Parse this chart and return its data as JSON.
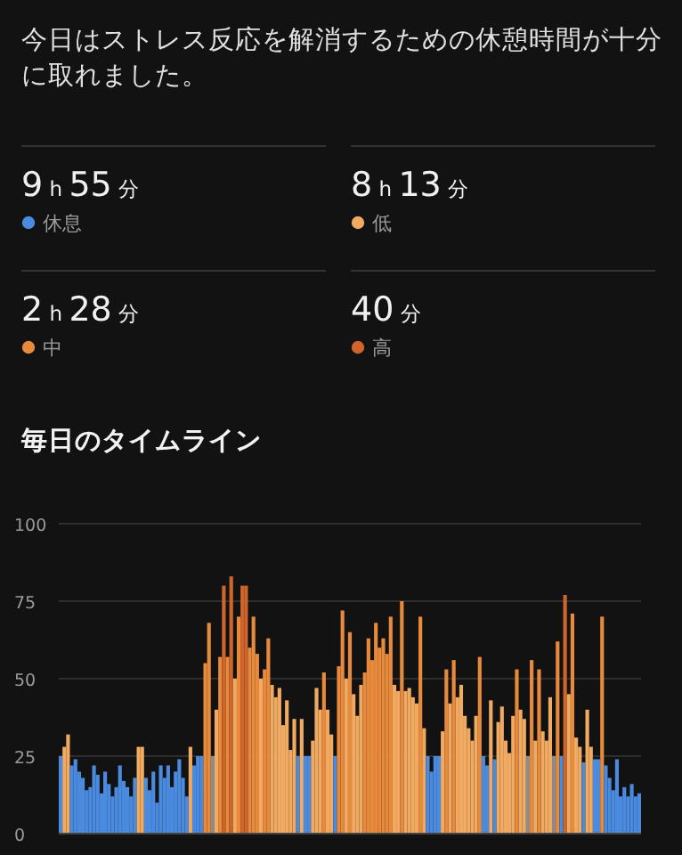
{
  "chart_data": [
    {
      "type": "other",
      "title": "今日はストレス反応を解消するための休憩時間が十分に取れました。",
      "categories": [
        "休息",
        "低",
        "中",
        "高"
      ],
      "colors": [
        "#4a8be0",
        "#f0aa62",
        "#e88a3c",
        "#d0652b"
      ],
      "value_labels": [
        "9 h 55 分",
        "8 h 13 分",
        "2 h 28 分",
        "40 分"
      ]
    },
    {
      "type": "bar",
      "title": "毎日のタイムライン",
      "ylim": [
        0,
        100
      ],
      "yticks": [
        0,
        25,
        50,
        75,
        100
      ],
      "grid": "y",
      "categories": [
        null,
        null,
        null,
        null,
        null,
        null,
        null,
        null,
        null,
        null,
        null,
        null,
        null,
        null,
        null,
        null,
        null,
        null,
        null,
        null,
        null,
        null,
        null,
        null,
        null,
        null,
        null,
        null,
        null,
        null,
        null,
        null,
        null,
        null,
        null,
        null,
        null,
        null,
        null,
        null,
        null,
        null,
        null,
        null,
        null,
        null,
        null,
        null,
        null,
        null,
        null,
        null,
        null,
        null,
        null,
        null,
        null,
        null,
        null,
        null,
        null,
        null,
        null,
        null,
        null,
        null,
        null,
        null,
        null,
        null,
        null,
        null,
        null,
        null,
        null,
        null,
        null,
        null,
        null,
        null,
        null,
        null,
        null,
        null,
        null,
        null,
        null,
        null,
        null,
        null,
        null,
        null,
        null,
        null,
        null,
        null,
        null,
        null,
        null,
        null,
        null,
        null,
        null,
        null,
        null,
        null,
        null,
        null,
        null,
        null,
        null,
        null,
        null,
        null,
        null,
        null,
        null,
        null,
        null,
        null,
        null,
        null,
        null,
        null,
        null,
        null,
        null,
        null,
        null,
        null,
        null,
        null,
        null,
        null,
        null,
        null,
        null,
        null,
        null,
        null,
        null,
        null,
        null,
        null,
        null,
        null,
        null,
        null,
        null,
        null,
        null,
        null,
        null,
        null,
        null,
        null,
        null
      ],
      "values": [
        25,
        28,
        32,
        22,
        24,
        20,
        18,
        14,
        15,
        22,
        19,
        13,
        20,
        16,
        12,
        15,
        22,
        17,
        15,
        12,
        18,
        28,
        28,
        18,
        14,
        20,
        10,
        22,
        18,
        22,
        15,
        20,
        24,
        18,
        12,
        28,
        22,
        25,
        25,
        55,
        68,
        25,
        40,
        57,
        80,
        57,
        83,
        50,
        70,
        80,
        80,
        60,
        70,
        58,
        50,
        53,
        63,
        48,
        44,
        47,
        35,
        43,
        27,
        37,
        25,
        37,
        25,
        25,
        30,
        47,
        40,
        52,
        40,
        32,
        25,
        54,
        72,
        50,
        65,
        45,
        38,
        48,
        52,
        63,
        56,
        68,
        60,
        63,
        58,
        70,
        48,
        46,
        75,
        46,
        47,
        44,
        42,
        70,
        34,
        25,
        20,
        25,
        25,
        33,
        53,
        42,
        56,
        44,
        48,
        38,
        34,
        30,
        38,
        57,
        25,
        22,
        43,
        24,
        36,
        41,
        30,
        26,
        38,
        53,
        40,
        37,
        25,
        56,
        30,
        53,
        33,
        30,
        44,
        25,
        62,
        25,
        77,
        45,
        71,
        31,
        28,
        23,
        40,
        28,
        24,
        24,
        70,
        22,
        18,
        14,
        24,
        12,
        15,
        12,
        16,
        12,
        13
      ],
      "colors": [
        "#4a8be0",
        "#f0aa62",
        "#f0aa62",
        "#4a8be0",
        "#4a8be0",
        "#4a8be0",
        "#4a8be0",
        "#4a8be0",
        "#4a8be0",
        "#4a8be0",
        "#4a8be0",
        "#4a8be0",
        "#4a8be0",
        "#4a8be0",
        "#4a8be0",
        "#4a8be0",
        "#4a8be0",
        "#4a8be0",
        "#4a8be0",
        "#4a8be0",
        "#4a8be0",
        "#f0aa62",
        "#f0aa62",
        "#4a8be0",
        "#4a8be0",
        "#4a8be0",
        "#4a8be0",
        "#4a8be0",
        "#4a8be0",
        "#4a8be0",
        "#4a8be0",
        "#4a8be0",
        "#4a8be0",
        "#4a8be0",
        "#4a8be0",
        "#f0aa62",
        "#4a8be0",
        "#4a8be0",
        "#4a8be0",
        "#e88a3c",
        "#e88a3c",
        "#8c8c8c",
        "#f0aa62",
        "#e88a3c",
        "#d0652b",
        "#e88a3c",
        "#d0652b",
        "#f0aa62",
        "#e88a3c",
        "#d0652b",
        "#d0652b",
        "#e88a3c",
        "#e88a3c",
        "#e88a3c",
        "#f0aa62",
        "#e88a3c",
        "#e88a3c",
        "#f0aa62",
        "#f0aa62",
        "#f0aa62",
        "#f0aa62",
        "#f0aa62",
        "#f0aa62",
        "#f0aa62",
        "#4a8be0",
        "#f0aa62",
        "#4a8be0",
        "#4a8be0",
        "#f0aa62",
        "#f0aa62",
        "#f0aa62",
        "#e88a3c",
        "#f0aa62",
        "#f0aa62",
        "#4a8be0",
        "#e88a3c",
        "#e88a3c",
        "#f0aa62",
        "#e88a3c",
        "#f0aa62",
        "#f0aa62",
        "#f0aa62",
        "#e88a3c",
        "#e88a3c",
        "#e88a3c",
        "#e88a3c",
        "#e88a3c",
        "#e88a3c",
        "#e88a3c",
        "#e88a3c",
        "#f0aa62",
        "#f0aa62",
        "#e88a3c",
        "#f0aa62",
        "#f0aa62",
        "#f0aa62",
        "#f0aa62",
        "#e88a3c",
        "#f0aa62",
        "#4a8be0",
        "#4a8be0",
        "#4a8be0",
        "#4a8be0",
        "#f0aa62",
        "#e88a3c",
        "#f0aa62",
        "#e88a3c",
        "#f0aa62",
        "#f0aa62",
        "#f0aa62",
        "#f0aa62",
        "#f0aa62",
        "#f0aa62",
        "#e88a3c",
        "#4a8be0",
        "#4a8be0",
        "#f0aa62",
        "#4a8be0",
        "#f0aa62",
        "#f0aa62",
        "#f0aa62",
        "#f0aa62",
        "#f0aa62",
        "#e88a3c",
        "#f0aa62",
        "#f0aa62",
        "#8c8c8c",
        "#e88a3c",
        "#f0aa62",
        "#e88a3c",
        "#f0aa62",
        "#f0aa62",
        "#f0aa62",
        "#8c8c8c",
        "#e88a3c",
        "#4a8be0",
        "#d0652b",
        "#f0aa62",
        "#e88a3c",
        "#f0aa62",
        "#f0aa62",
        "#4a8be0",
        "#f0aa62",
        "#f0aa62",
        "#4a8be0",
        "#4a8be0",
        "#e88a3c",
        "#4a8be0",
        "#4a8be0",
        "#4a8be0",
        "#4a8be0",
        "#4a8be0",
        "#4a8be0",
        "#4a8be0",
        "#4a8be0",
        "#4a8be0",
        "#4a8be0"
      ]
    }
  ]
}
